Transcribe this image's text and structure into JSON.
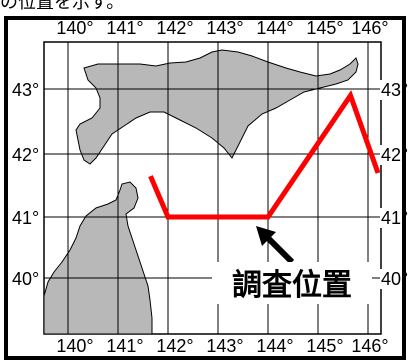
{
  "cropped_top_text": "の位置を示す。",
  "map": {
    "longitudes": [
      "140°",
      "141°",
      "142°",
      "143°",
      "144°",
      "145°",
      "146°"
    ],
    "latitudes": [
      "43°",
      "42°",
      "41°",
      "40°"
    ],
    "annotation": "調査位置",
    "colors": {
      "land": "#b8b8b8",
      "land_outline": "#000000",
      "grid": "#000000",
      "track": "#ff0000",
      "frame": "#000000"
    },
    "survey_track": [
      {
        "lon": 141.65,
        "lat": 41.65
      },
      {
        "lon": 142.0,
        "lat": 41.0
      },
      {
        "lon": 144.0,
        "lat": 41.0
      },
      {
        "lon": 145.65,
        "lat": 42.9
      },
      {
        "lon": 146.2,
        "lat": 41.7
      }
    ]
  }
}
